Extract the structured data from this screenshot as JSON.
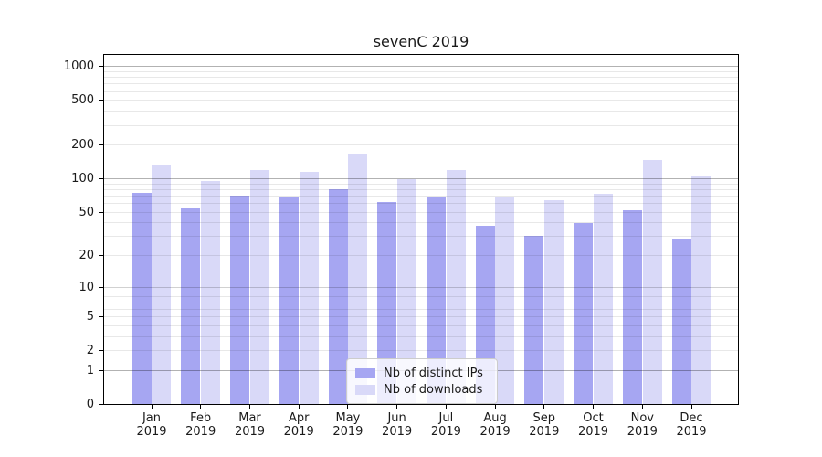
{
  "title": "sevenC 2019",
  "colors": {
    "ip_bar": "#a6a6f2",
    "dl_bar": "#d9d9f8",
    "grid_major": "rgba(0,0,0,0.30)",
    "grid_mid": "rgba(0,0,0,0.18)",
    "grid_minor": "rgba(0,0,0,0.09)",
    "spine": "#000000",
    "text": "#1a1a1a"
  },
  "chart_data": {
    "type": "bar",
    "title": "sevenC 2019",
    "yscale": "log1p",
    "grid": true,
    "legend_position": "lower center",
    "year": "2019",
    "categories": [
      "Jan",
      "Feb",
      "Mar",
      "Apr",
      "May",
      "Jun",
      "Jul",
      "Aug",
      "Sep",
      "Oct",
      "Nov",
      "Dec"
    ],
    "series": [
      {
        "name": "Nb of distinct IPs",
        "color": "#a6a6f2",
        "values": [
          75,
          55,
          71,
          70,
          82,
          62,
          70,
          38,
          31,
          40,
          53,
          29
        ]
      },
      {
        "name": "Nb of downloads",
        "color": "#d9d9f8",
        "values": [
          132,
          97,
          122,
          117,
          170,
          101,
          121,
          70,
          65,
          74,
          150,
          106
        ]
      }
    ],
    "y_ticks": [
      0,
      1,
      2,
      5,
      10,
      20,
      50,
      100,
      200,
      500,
      1000
    ],
    "ylim": [
      0,
      1300
    ],
    "xlabel": "",
    "ylabel": ""
  }
}
